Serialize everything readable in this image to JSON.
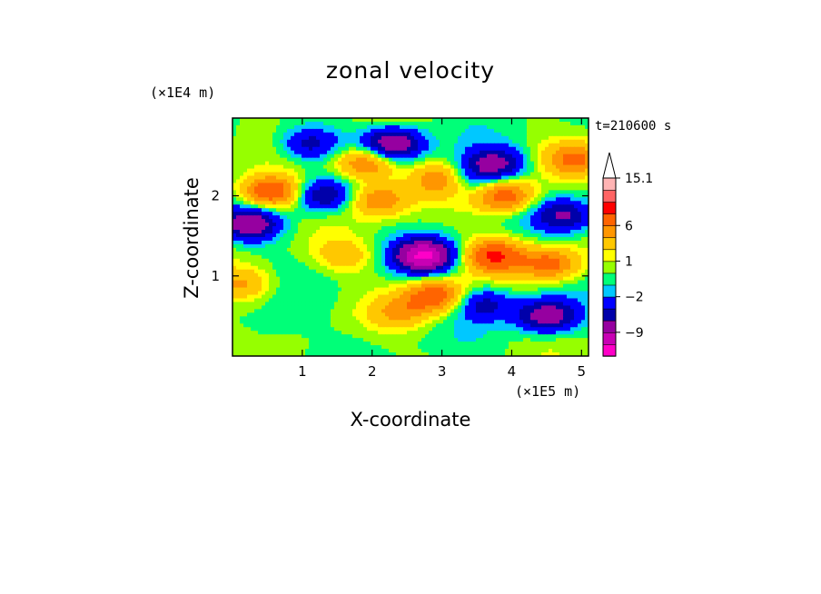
{
  "chart_data": {
    "type": "heatmap",
    "title": "zonal velocity",
    "xlabel": "X-coordinate",
    "ylabel": "Z-coordinate",
    "x_unit": "(×1E5 m)",
    "y_unit": "(×1E4 m)",
    "time_label": "t=210600 s",
    "xlim": [
      0,
      5.1
    ],
    "ylim": [
      0,
      2.97
    ],
    "x_ticks": [
      1,
      2,
      3,
      4,
      5
    ],
    "y_ticks": [
      1,
      2
    ],
    "colorbar": {
      "levels": [
        -15,
        -12,
        -9,
        -6,
        -4,
        -2,
        -1,
        0,
        1,
        2,
        4,
        6,
        9,
        12,
        15.1
      ],
      "labeled_ticks": [
        {
          "value": 15.1,
          "label": "15.1"
        },
        {
          "value": 6,
          "label": "6"
        },
        {
          "value": 1,
          "label": "1"
        },
        {
          "value": -2,
          "label": "−2"
        },
        {
          "value": -9,
          "label": "−9"
        }
      ],
      "colors": [
        "#ff00c8",
        "#c800b4",
        "#9600a0",
        "#0000aa",
        "#0000ff",
        "#00c8ff",
        "#00ff78",
        "#96ff00",
        "#ffff00",
        "#ffc800",
        "#ff9600",
        "#ff6400",
        "#ff0000",
        "#ff6464",
        "#ffb4b4"
      ],
      "extend_top_color": "#ffffff"
    },
    "features": [
      {
        "x": 0.25,
        "z": 1.65,
        "value": -8
      },
      {
        "x": 0.55,
        "z": 2.05,
        "value": 9
      },
      {
        "x": 1.1,
        "z": 2.65,
        "value": -5
      },
      {
        "x": 1.3,
        "z": 2.0,
        "value": -6
      },
      {
        "x": 1.9,
        "z": 2.4,
        "value": 7
      },
      {
        "x": 2.3,
        "z": 2.65,
        "value": -9
      },
      {
        "x": 2.1,
        "z": 1.95,
        "value": 6
      },
      {
        "x": 2.75,
        "z": 1.25,
        "value": -12
      },
      {
        "x": 2.9,
        "z": 0.75,
        "value": 8
      },
      {
        "x": 2.4,
        "z": 0.55,
        "value": 4
      },
      {
        "x": 3.6,
        "z": 0.65,
        "value": -5
      },
      {
        "x": 4.5,
        "z": 0.5,
        "value": -8
      },
      {
        "x": 3.75,
        "z": 2.4,
        "value": -7
      },
      {
        "x": 3.9,
        "z": 2.0,
        "value": 8
      },
      {
        "x": 4.75,
        "z": 1.75,
        "value": -6
      },
      {
        "x": 3.75,
        "z": 1.25,
        "value": 9
      },
      {
        "x": 4.55,
        "z": 1.15,
        "value": 7
      },
      {
        "x": 4.9,
        "z": 2.45,
        "value": 6
      },
      {
        "x": 0.15,
        "z": 0.9,
        "value": 4
      },
      {
        "x": 0.5,
        "z": 0.35,
        "value": -1
      },
      {
        "x": 1.6,
        "z": 1.25,
        "value": 3
      },
      {
        "x": 3.0,
        "z": 2.2,
        "value": 6
      },
      {
        "x": 3.35,
        "z": 2.2,
        "value": -4
      }
    ]
  }
}
